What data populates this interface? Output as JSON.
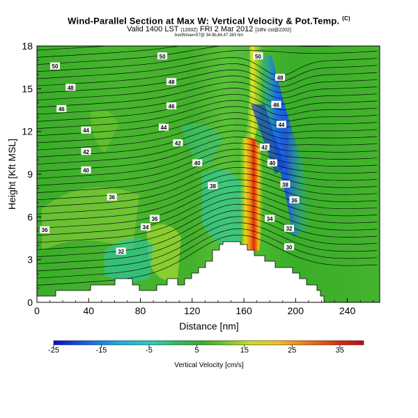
{
  "header": {
    "title": "Wind-Parallel Section at Max W: Vertical Velocity & Pot.Temp.",
    "title_mark": "(C)",
    "valid_prefix": "Valid 1400 LST",
    "valid_small": "(1200Z)",
    "valid_mid": "FRI 2 Mar 2012",
    "valid_run": "[18hr cst@2202]",
    "subline": "boxWmax=57@ 34.9b,84.47 283 hm"
  },
  "chart_data": {
    "type": "heatmap",
    "title": "Wind-Parallel Section at Max W: Vertical Velocity & Pot.Temp.",
    "xlabel": "Distance [nm]",
    "ylabel": "Height [Kft MSL]",
    "xlim": [
      0,
      265
    ],
    "ylim": [
      0,
      18
    ],
    "xticks": [
      "0",
      "40",
      "80",
      "120",
      "160",
      "200",
      "240"
    ],
    "yticks": [
      "0",
      "3",
      "6",
      "9",
      "12",
      "15",
      "18"
    ],
    "colorbar": {
      "label": "Vertical Velocity [cm/s]",
      "range": [
        -25,
        40
      ],
      "ticks": [
        "-25",
        "-15",
        "-5",
        "5",
        "15",
        "25",
        "35"
      ]
    },
    "contour_labels": [
      {
        "x": 14,
        "y": 16.6,
        "v": "50"
      },
      {
        "x": 26,
        "y": 15.1,
        "v": "48"
      },
      {
        "x": 19,
        "y": 13.6,
        "v": "46"
      },
      {
        "x": 38,
        "y": 12.1,
        "v": "44"
      },
      {
        "x": 38,
        "y": 10.6,
        "v": "42"
      },
      {
        "x": 38,
        "y": 9.3,
        "v": "40"
      },
      {
        "x": 58,
        "y": 7.4,
        "v": "36"
      },
      {
        "x": 6,
        "y": 5.1,
        "v": "36"
      },
      {
        "x": 97,
        "y": 17.3,
        "v": "50"
      },
      {
        "x": 104,
        "y": 15.5,
        "v": "48"
      },
      {
        "x": 104,
        "y": 13.8,
        "v": "46"
      },
      {
        "x": 98,
        "y": 12.3,
        "v": "44"
      },
      {
        "x": 109,
        "y": 11.2,
        "v": "42"
      },
      {
        "x": 124,
        "y": 9.8,
        "v": "40"
      },
      {
        "x": 136,
        "y": 8.2,
        "v": "38"
      },
      {
        "x": 91,
        "y": 5.9,
        "v": "36"
      },
      {
        "x": 84,
        "y": 5.3,
        "v": "34"
      },
      {
        "x": 65,
        "y": 3.6,
        "v": "32"
      },
      {
        "x": 171,
        "y": 17.3,
        "v": "50"
      },
      {
        "x": 188,
        "y": 15.8,
        "v": "48"
      },
      {
        "x": 185,
        "y": 13.9,
        "v": "46"
      },
      {
        "x": 189,
        "y": 12.5,
        "v": "44"
      },
      {
        "x": 176,
        "y": 10.9,
        "v": "42"
      },
      {
        "x": 182,
        "y": 9.8,
        "v": "40"
      },
      {
        "x": 192,
        "y": 8.3,
        "v": "38"
      },
      {
        "x": 199,
        "y": 7.2,
        "v": "36"
      },
      {
        "x": 180,
        "y": 5.9,
        "v": "34"
      },
      {
        "x": 195,
        "y": 5.2,
        "v": "32"
      },
      {
        "x": 195,
        "y": 3.9,
        "v": "30"
      }
    ]
  }
}
